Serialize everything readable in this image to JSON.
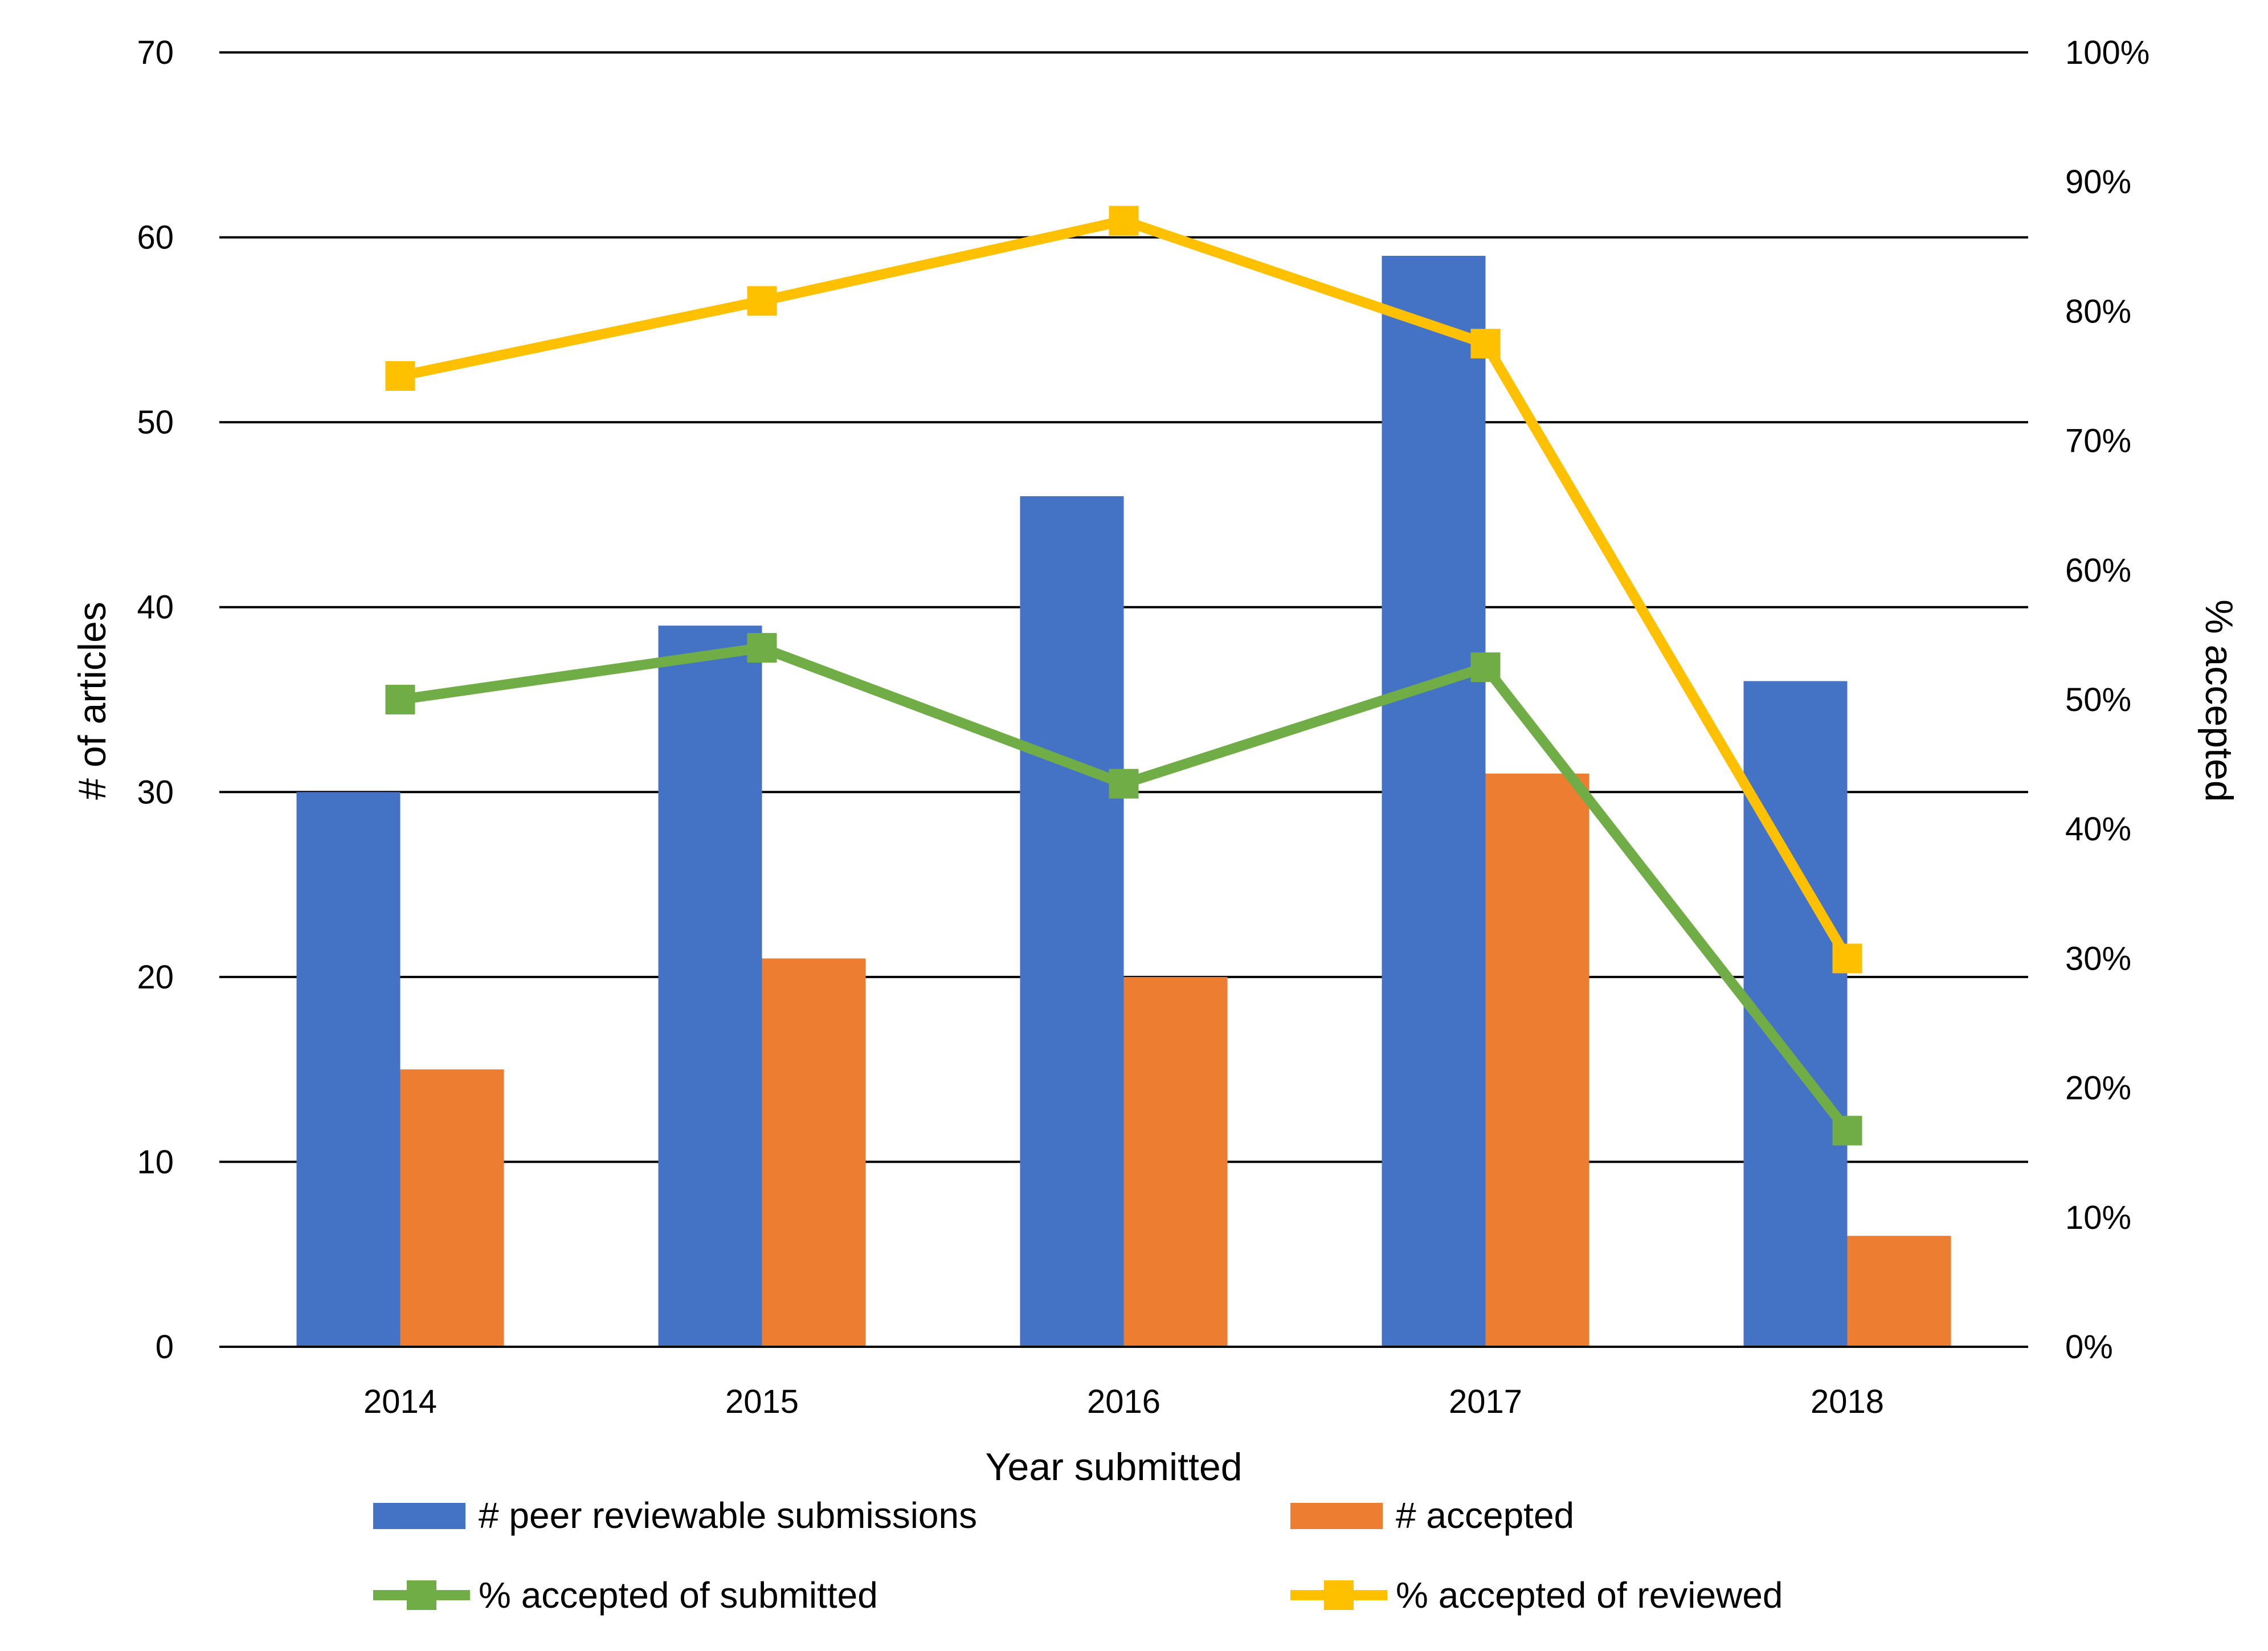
{
  "chart_data": {
    "type": "bar",
    "categories": [
      "2014",
      "2015",
      "2016",
      "2017",
      "2018"
    ],
    "xlabel": "Year submitted",
    "ylabel": "# of articles",
    "y2label": "% accepted",
    "ylim": [
      0,
      70
    ],
    "y2lim": [
      0,
      100
    ],
    "yticks": [
      "0",
      "10",
      "20",
      "30",
      "40",
      "50",
      "60",
      "70"
    ],
    "y2ticks": [
      "0%",
      "10%",
      "20%",
      "30%",
      "40%",
      "50%",
      "60%",
      "70%",
      "80%",
      "90%",
      "100%"
    ],
    "grid": true,
    "legend_position": "bottom",
    "series": [
      {
        "name": "# peer reviewable submissions",
        "kind": "bar",
        "axis": "left",
        "color": "#4472C4",
        "values": [
          30,
          39,
          46,
          59,
          36
        ]
      },
      {
        "name": "# accepted",
        "kind": "bar",
        "axis": "left",
        "color": "#ED7D31",
        "values": [
          15,
          21,
          20,
          31,
          6
        ]
      },
      {
        "name": "% accepted of submitted",
        "kind": "line",
        "axis": "right",
        "marker": "square",
        "color": "#70AD47",
        "values": [
          50,
          54,
          43.5,
          52.5,
          16.7
        ]
      },
      {
        "name": "% accepted of reviewed",
        "kind": "line",
        "axis": "right",
        "marker": "square",
        "color": "#FFC000",
        "values": [
          75,
          80.8,
          87,
          77.5,
          30
        ]
      }
    ]
  }
}
